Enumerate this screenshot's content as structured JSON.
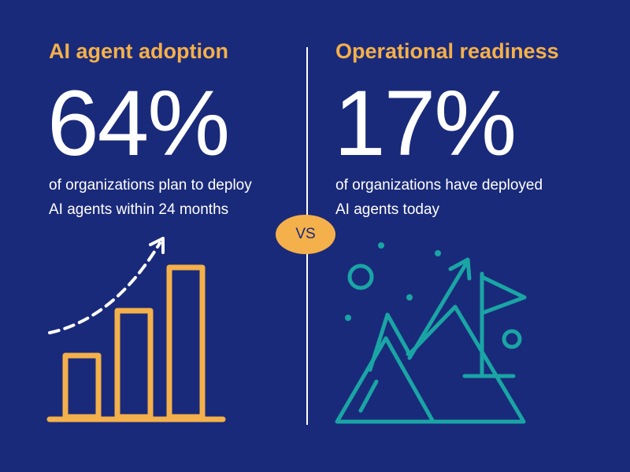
{
  "left": {
    "heading": "AI agent adoption",
    "stat": "64%",
    "desc_line1": "of organizations plan to deploy",
    "desc_line2": "AI agents within 24 months",
    "icon": "bar-chart-growth-icon"
  },
  "right": {
    "heading": "Operational readiness",
    "stat": "17%",
    "desc_line1": "of organizations have deployed",
    "desc_line2": "AI agents today",
    "icon": "mountain-flag-icon"
  },
  "vs_label": "VS",
  "colors": {
    "background": "#1a2a7a",
    "accent": "#f4b04a",
    "teal": "#1aa5a5",
    "text": "#ffffff"
  }
}
